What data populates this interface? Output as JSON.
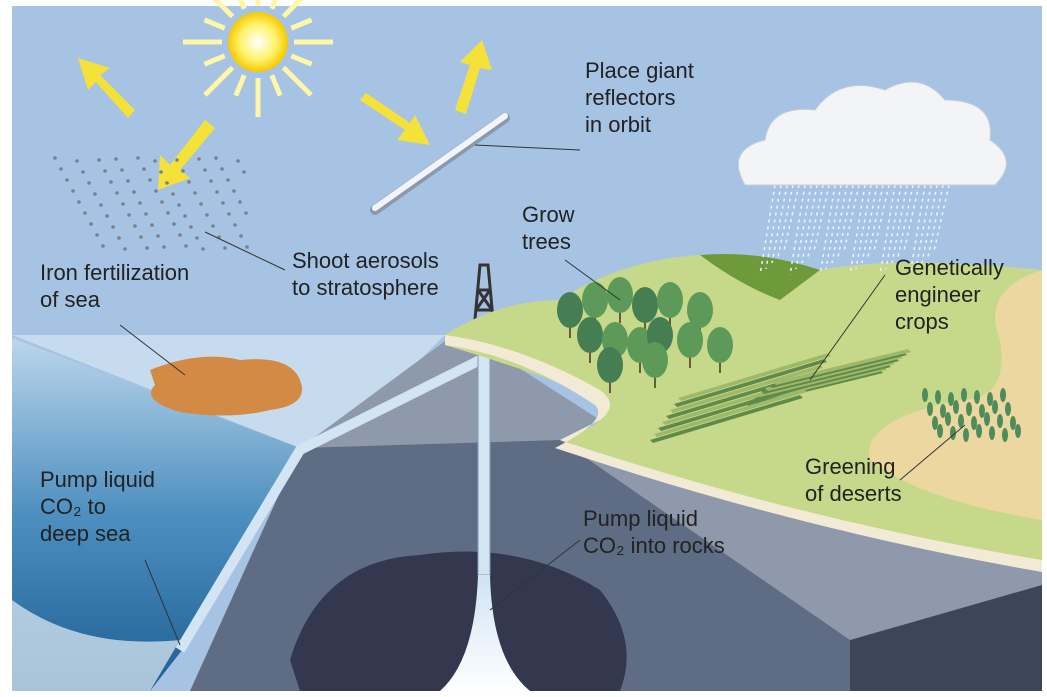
{
  "labels": [
    {
      "lines": [
        "Place giant",
        "reflectors",
        "in orbit"
      ]
    },
    {
      "lines": [
        "Shoot aerosols",
        "to stratosphere"
      ]
    },
    {
      "lines": [
        "Iron fertilization",
        "of sea"
      ]
    },
    {
      "lines": [
        "Grow",
        "trees"
      ]
    },
    {
      "lines": [
        "Genetically",
        "engineer",
        "crops"
      ]
    },
    {
      "lines": [
        "Pump liquid",
        "CO₂ to",
        "deep sea"
      ]
    },
    {
      "lines": [
        "Pump liquid",
        "CO₂ into rocks"
      ]
    },
    {
      "lines": [
        "Greening",
        "of deserts"
      ]
    }
  ]
}
